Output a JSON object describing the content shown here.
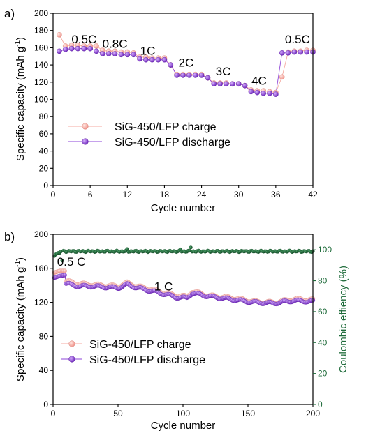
{
  "chart_data": [
    {
      "type": "scatter",
      "panel_label": "a)",
      "xlabel": "Cycle number",
      "ylabel": "Specific capacity (mAh g",
      "ylabel_sup": "-1",
      "ylabel_close": ")",
      "xlim": [
        0,
        42
      ],
      "ylim": [
        0,
        200
      ],
      "xticks": [
        0,
        6,
        12,
        18,
        24,
        30,
        36,
        42
      ],
      "yticks": [
        0,
        20,
        40,
        60,
        80,
        100,
        120,
        140,
        160,
        180,
        200
      ],
      "legend_position": "center-left",
      "annotations": [
        {
          "text": "0.5C",
          "x": 5,
          "y": 165
        },
        {
          "text": "0.8C",
          "x": 10,
          "y": 160
        },
        {
          "text": "1C",
          "x": 15.3,
          "y": 152
        },
        {
          "text": "2C",
          "x": 21.5,
          "y": 138
        },
        {
          "text": "3C",
          "x": 27.5,
          "y": 128
        },
        {
          "text": "4C",
          "x": 33.3,
          "y": 117
        },
        {
          "text": "0.5C",
          "x": 39.5,
          "y": 165
        }
      ],
      "series": [
        {
          "name": "SiG-450/LFP charge",
          "color": "#f4a9a0",
          "x": [
            1,
            2,
            3,
            4,
            5,
            6,
            7,
            8,
            9,
            10,
            11,
            12,
            13,
            14,
            15,
            16,
            17,
            18,
            19,
            20,
            21,
            22,
            23,
            24,
            25,
            26,
            27,
            28,
            29,
            30,
            31,
            32,
            33,
            34,
            35,
            36,
            37,
            38,
            39,
            40,
            41,
            42
          ],
          "y": [
            175,
            162,
            163,
            163,
            162,
            162,
            162,
            157,
            156,
            156,
            155,
            155,
            154,
            149,
            149,
            148,
            148,
            148,
            140,
            129,
            129,
            129,
            129,
            129,
            125,
            119,
            119,
            119,
            118,
            118,
            116,
            111,
            110,
            110,
            109,
            108,
            126,
            155,
            156,
            156,
            157,
            157
          ]
        },
        {
          "name": "SiG-450/LFP discharge",
          "color": "#8e44d8",
          "x": [
            1,
            2,
            3,
            4,
            5,
            6,
            7,
            8,
            9,
            10,
            11,
            12,
            13,
            14,
            15,
            16,
            17,
            18,
            19,
            20,
            21,
            22,
            23,
            24,
            25,
            26,
            27,
            28,
            29,
            30,
            31,
            32,
            33,
            34,
            35,
            36,
            37,
            38,
            39,
            40,
            41,
            42
          ],
          "y": [
            156,
            158,
            159,
            159,
            159,
            159,
            156,
            153,
            153,
            153,
            152,
            152,
            152,
            147,
            146,
            146,
            146,
            146,
            140,
            128,
            128,
            128,
            128,
            128,
            125,
            118,
            118,
            118,
            118,
            118,
            116,
            109,
            108,
            107,
            107,
            106,
            154,
            154,
            155,
            155,
            155,
            155
          ]
        }
      ]
    },
    {
      "type": "scatter",
      "panel_label": "b)",
      "xlabel": "Cycle number",
      "ylabel": "Specific capacity (mAh g",
      "ylabel_sup": "-1",
      "ylabel_close": ")",
      "y2label": "Coulombic effiency (%)",
      "xlim": [
        0,
        200
      ],
      "ylim": [
        0,
        200
      ],
      "y2lim": [
        0,
        110
      ],
      "xticks": [
        0,
        50,
        100,
        150,
        200
      ],
      "yticks": [
        0,
        40,
        80,
        120,
        160,
        200
      ],
      "y2ticks": [
        0,
        20,
        40,
        60,
        80,
        100
      ],
      "legend_position": "lower-left",
      "annotations": [
        {
          "text": "0.5 C",
          "x": 14,
          "y": 163
        },
        {
          "text": "1 C",
          "x": 85,
          "y": 134
        }
      ],
      "capacity_anchors": [
        {
          "x": 1,
          "charge": 155,
          "discharge": 149
        },
        {
          "x": 5,
          "charge": 157,
          "discharge": 151
        },
        {
          "x": 9,
          "charge": 157,
          "discharge": 152
        },
        {
          "x": 10,
          "charge": 145,
          "discharge": 142
        },
        {
          "x": 20,
          "charge": 142,
          "discharge": 139
        },
        {
          "x": 30,
          "charge": 141,
          "discharge": 139
        },
        {
          "x": 40,
          "charge": 140,
          "discharge": 138
        },
        {
          "x": 50,
          "charge": 139,
          "discharge": 137
        },
        {
          "x": 57,
          "charge": 143,
          "discharge": 141
        },
        {
          "x": 65,
          "charge": 139,
          "discharge": 137
        },
        {
          "x": 80,
          "charge": 134,
          "discharge": 132
        },
        {
          "x": 95,
          "charge": 128,
          "discharge": 126
        },
        {
          "x": 103,
          "charge": 127,
          "discharge": 125
        },
        {
          "x": 107,
          "charge": 133,
          "discharge": 131
        },
        {
          "x": 120,
          "charge": 128,
          "discharge": 127
        },
        {
          "x": 140,
          "charge": 125,
          "discharge": 123
        },
        {
          "x": 155,
          "charge": 121,
          "discharge": 120
        },
        {
          "x": 170,
          "charge": 120,
          "discharge": 119
        },
        {
          "x": 185,
          "charge": 124,
          "discharge": 122
        },
        {
          "x": 200,
          "charge": 123,
          "discharge": 121
        }
      ],
      "series": [
        {
          "name": "SiG-450/LFP charge",
          "color": "#f4a9a0"
        },
        {
          "name": "SiG-450/LFP discharge",
          "color": "#8e44d8"
        },
        {
          "color": "#1e6b3a",
          "axis": "right",
          "baseline": 99,
          "first_cycles": [
            96,
            97,
            97.5,
            98,
            98
          ],
          "outliers": [
            {
              "x": 7,
              "y": 93
            },
            {
              "x": 57,
              "y": 100.5
            },
            {
              "x": 98,
              "y": 100.3
            },
            {
              "x": 106,
              "y": 101.5
            }
          ]
        }
      ]
    }
  ]
}
